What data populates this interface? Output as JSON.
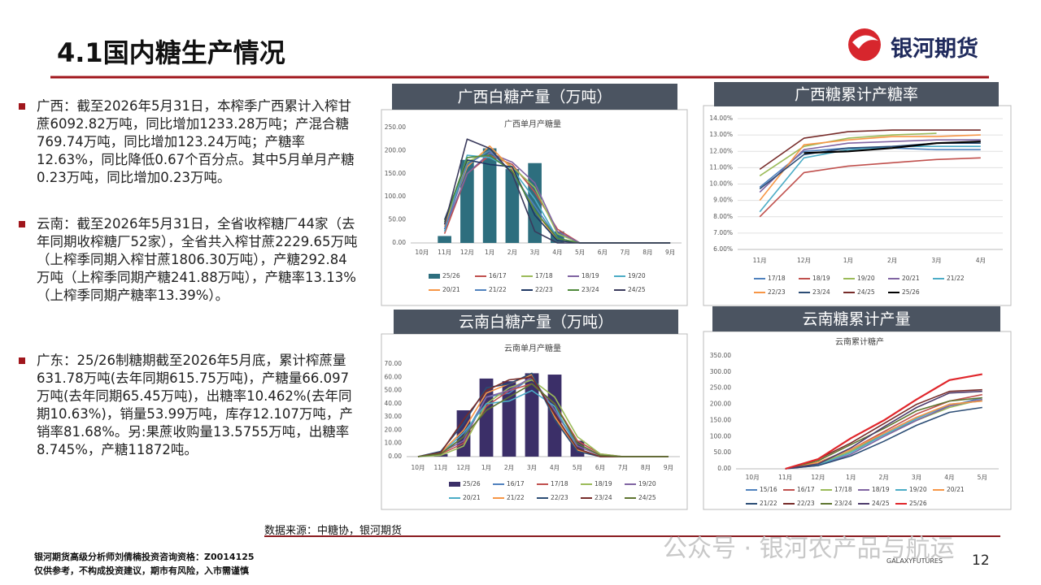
{
  "header": {
    "title": "4.1国内糖生产情况",
    "logo": "银河期货"
  },
  "bullets": [
    "广西：截至2026年5月31日，本榨季广西累计入榨甘蔗6092.82万吨，同比增加1233.28万吨；产混合糖769.74万吨，同比增加123.24万吨；产糖率12.63%，同比降低0.67个百分点。其中5月单月产糖0.23万吨，同比增加0.23万吨。",
    "云南：截至2026年5月31日，全省收榨糖厂44家（去年同期收榨糖厂52家），全省共入榨甘蔗2229.65万吨（上榨季同期入榨甘蔗1806.30万吨），产糖292.84万吨（上榨季同期产糖241.88万吨），产糖率13.13%（上榨季同期产糖率13.39%）。",
    "广东：25/26制糖期截至2026年5月底，累计榨蔗量631.78万吨(去年同期615.75万吨)，产糖量66.097万吨(去年同期65.45万吨)，出糖率10.462%(去年同期10.63%)，销量53.99万吨，库存12.107万吨，产销率81.68%。另:果蔗收购量13.5755万吨，出糖率8.745%，产糖11872吨。"
  ],
  "source": "数据来源：中糖协，银河期货",
  "footer": {
    "line1": "银河期货高级分析师刘倩楠投资咨询资格：Z0014125",
    "line2": "仅供参考，不构成投资建议，期市有风险，入市需谨慎",
    "watermark": "公众号 · 银河农产品与航运",
    "brand": "GALAXYFUTURES",
    "page": "12"
  },
  "chart_data": [
    {
      "type": "combo",
      "title": "广西白糖产量（万吨）",
      "subtitle": "广西单月产糖量",
      "grid": false,
      "categories": [
        "10月",
        "11月",
        "12月",
        "1月",
        "2月",
        "3月",
        "4月",
        "5月",
        "6月",
        "7月",
        "8月",
        "9月"
      ],
      "ylim": [
        0,
        250
      ],
      "yticks": [
        {
          "value": 0,
          "label": "0.00"
        },
        {
          "value": 50,
          "label": "50.00"
        },
        {
          "value": 100,
          "label": "100.00"
        },
        {
          "value": 150,
          "label": "150.00"
        },
        {
          "value": 200,
          "label": "200.00"
        },
        {
          "value": 250,
          "label": "250.00"
        }
      ],
      "series": [
        {
          "name": "25/26",
          "type": "bar",
          "color": "#2d6e7e",
          "values": [
            null,
            15,
            180,
            205,
            160,
            173,
            25,
            0.23,
            null,
            null,
            null,
            null
          ]
        },
        {
          "name": "16/17",
          "type": "line",
          "color": "#c0504d",
          "values": [
            null,
            20,
            150,
            190,
            170,
            110,
            30,
            0,
            0,
            0,
            0,
            0
          ]
        },
        {
          "name": "17/18",
          "type": "line",
          "color": "#9bbb59",
          "values": [
            null,
            40,
            175,
            200,
            165,
            120,
            20,
            0,
            0,
            0,
            0,
            0
          ]
        },
        {
          "name": "18/19",
          "type": "line",
          "color": "#8064a2",
          "values": [
            null,
            30,
            150,
            195,
            175,
            130,
            25,
            0,
            0,
            0,
            0,
            0
          ]
        },
        {
          "name": "19/20",
          "type": "line",
          "color": "#4bacc6",
          "values": [
            null,
            25,
            190,
            185,
            160,
            95,
            10,
            0,
            0,
            0,
            0,
            0
          ]
        },
        {
          "name": "20/21",
          "type": "line",
          "color": "#f79646",
          "values": [
            null,
            35,
            165,
            210,
            160,
            70,
            5,
            0,
            0,
            0,
            0,
            0
          ]
        },
        {
          "name": "21/22",
          "type": "line",
          "color": "#4f81bd",
          "values": [
            null,
            30,
            170,
            200,
            150,
            80,
            10,
            0,
            0,
            0,
            0,
            0
          ]
        },
        {
          "name": "22/23",
          "type": "line",
          "color": "#1f3864",
          "values": [
            null,
            50,
            180,
            170,
            165,
            60,
            5,
            0,
            0,
            0,
            0,
            0
          ]
        },
        {
          "name": "23/24",
          "type": "line",
          "color": "#4f8a3c",
          "values": [
            null,
            45,
            185,
            190,
            155,
            70,
            10,
            0,
            0,
            0,
            0,
            0
          ]
        },
        {
          "name": "24/25",
          "type": "line",
          "color": "#3a3a5c",
          "values": [
            null,
            40,
            225,
            205,
            150,
            25,
            0,
            0,
            0,
            0,
            0,
            0
          ]
        }
      ]
    },
    {
      "type": "line",
      "title": "广西糖累计产糖率",
      "grid": true,
      "categories": [
        "11月",
        "12月",
        "1月",
        "2月",
        "3月",
        "4月"
      ],
      "ylim": [
        6,
        14
      ],
      "yticks": [
        {
          "value": 6,
          "label": "6.00%"
        },
        {
          "value": 7,
          "label": "7.00%"
        },
        {
          "value": 8,
          "label": "8.00%"
        },
        {
          "value": 9,
          "label": "9.00%"
        },
        {
          "value": 10,
          "label": "10.00%"
        },
        {
          "value": 11,
          "label": "11.00%"
        },
        {
          "value": 12,
          "label": "12.00%"
        },
        {
          "value": 13,
          "label": "13.00%"
        },
        {
          "value": 14,
          "label": "14.00%"
        }
      ],
      "series": [
        {
          "name": "17/18",
          "type": "line",
          "color": "#4f81bd",
          "values": [
            9.8,
            12.0,
            12.2,
            12.2,
            12.1,
            12.1
          ]
        },
        {
          "name": "18/19",
          "type": "line",
          "color": "#c0504d",
          "values": [
            8.0,
            10.7,
            11.1,
            11.3,
            11.5,
            11.6
          ]
        },
        {
          "name": "19/20",
          "type": "line",
          "color": "#9bbb59",
          "values": [
            10.5,
            12.3,
            12.8,
            13.0,
            13.1,
            null
          ]
        },
        {
          "name": "20/21",
          "type": "line",
          "color": "#8064a2",
          "values": [
            9.5,
            12.1,
            12.5,
            12.6,
            12.7,
            12.7
          ]
        },
        {
          "name": "21/22",
          "type": "line",
          "color": "#4bacc6",
          "values": [
            8.3,
            11.6,
            12.1,
            12.3,
            12.3,
            12.3
          ]
        },
        {
          "name": "22/23",
          "type": "line",
          "color": "#f79646",
          "values": [
            9.0,
            12.4,
            12.7,
            12.9,
            12.9,
            13.0
          ]
        },
        {
          "name": "23/24",
          "type": "line",
          "color": "#2c4d75",
          "values": [
            9.7,
            11.8,
            12.2,
            12.3,
            12.5,
            12.5
          ]
        },
        {
          "name": "24/25",
          "type": "line",
          "color": "#772c2a",
          "values": [
            10.9,
            12.8,
            13.2,
            13.3,
            13.3,
            13.3
          ]
        },
        {
          "name": "25/26",
          "type": "line",
          "color": "#000000",
          "values": [
            null,
            11.9,
            12.0,
            12.2,
            12.5,
            12.6
          ]
        }
      ]
    },
    {
      "type": "combo",
      "title": "云南白糖产量（万吨）",
      "subtitle": "云南单月产糖量",
      "grid": false,
      "categories": [
        "10月",
        "11月",
        "12月",
        "1月",
        "2月",
        "3月",
        "4月",
        "5月",
        "6月",
        "7月",
        "8月",
        "9月"
      ],
      "ylim": [
        0,
        70
      ],
      "yticks": [
        {
          "value": 0,
          "label": "0.00"
        },
        {
          "value": 10,
          "label": "10.00"
        },
        {
          "value": 20,
          "label": "20.00"
        },
        {
          "value": 30,
          "label": "30.00"
        },
        {
          "value": 40,
          "label": "40.00"
        },
        {
          "value": 50,
          "label": "50.00"
        },
        {
          "value": 60,
          "label": "60.00"
        },
        {
          "value": 70,
          "label": "70.00"
        }
      ],
      "series": [
        {
          "name": "25/26",
          "type": "bar",
          "color": "#3b2f68",
          "values": [
            null,
            2,
            35,
            59,
            57,
            63,
            62,
            12,
            null,
            null,
            null,
            null
          ]
        },
        {
          "name": "16/17",
          "type": "line",
          "color": "#4f81bd",
          "values": [
            0,
            2,
            15,
            45,
            48,
            60,
            35,
            10,
            1,
            0,
            0,
            0
          ]
        },
        {
          "name": "17/18",
          "type": "line",
          "color": "#c0504d",
          "values": [
            0,
            2,
            10,
            38,
            50,
            55,
            40,
            12,
            2,
            0,
            0,
            0
          ]
        },
        {
          "name": "18/19",
          "type": "line",
          "color": "#9bbb59",
          "values": [
            0,
            1,
            8,
            40,
            52,
            58,
            45,
            15,
            2,
            0,
            0,
            0
          ]
        },
        {
          "name": "19/20",
          "type": "line",
          "color": "#8064a2",
          "values": [
            0,
            3,
            12,
            45,
            50,
            60,
            35,
            8,
            1,
            0,
            0,
            0
          ]
        },
        {
          "name": "20/21",
          "type": "line",
          "color": "#4bacc6",
          "values": [
            0,
            2,
            18,
            40,
            42,
            50,
            38,
            6,
            0,
            0,
            0,
            0
          ]
        },
        {
          "name": "21/22",
          "type": "line",
          "color": "#f79646",
          "values": [
            0,
            3,
            20,
            48,
            55,
            62,
            30,
            5,
            0,
            0,
            0,
            0
          ]
        },
        {
          "name": "22/23",
          "type": "line",
          "color": "#2c4d75",
          "values": [
            0,
            4,
            25,
            52,
            55,
            63,
            28,
            4,
            0,
            0,
            0,
            0
          ]
        },
        {
          "name": "23/24",
          "type": "line",
          "color": "#772c2a",
          "values": [
            0,
            3,
            28,
            50,
            58,
            60,
            32,
            6,
            0,
            0,
            0,
            0
          ]
        },
        {
          "name": "24/25",
          "type": "line",
          "color": "#5f7530",
          "values": [
            0,
            2,
            15,
            35,
            45,
            55,
            40,
            10,
            1,
            0,
            0,
            0
          ]
        }
      ]
    },
    {
      "type": "line",
      "title": "云南糖累计产量",
      "subtitle": "云南累计糖产",
      "grid": false,
      "categories": [
        "10月",
        "11月",
        "12月",
        "1月",
        "2月",
        "3月",
        "4月",
        "5月"
      ],
      "ylim": [
        0,
        350
      ],
      "yticks": [
        {
          "value": 0,
          "label": "0.00"
        },
        {
          "value": 50,
          "label": "50.00"
        },
        {
          "value": 100,
          "label": "100.00"
        },
        {
          "value": 150,
          "label": "150.00"
        },
        {
          "value": 200,
          "label": "200.00"
        },
        {
          "value": 250,
          "label": "250.00"
        },
        {
          "value": 300,
          "label": "300.00"
        },
        {
          "value": 350,
          "label": "350.00"
        }
      ],
      "series": [
        {
          "name": "15/16",
          "type": "line",
          "color": "#4f81bd",
          "values": [
            null,
            0,
            15,
            55,
            110,
            160,
            195,
            220
          ]
        },
        {
          "name": "16/17",
          "type": "line",
          "color": "#c0504d",
          "values": [
            null,
            0,
            20,
            60,
            115,
            170,
            210,
            230
          ]
        },
        {
          "name": "17/18",
          "type": "line",
          "color": "#9bbb59",
          "values": [
            null,
            0,
            15,
            55,
            105,
            150,
            190,
            215
          ]
        },
        {
          "name": "18/19",
          "type": "line",
          "color": "#8064a2",
          "values": [
            null,
            0,
            10,
            45,
            100,
            150,
            195,
            215
          ]
        },
        {
          "name": "19/20",
          "type": "line",
          "color": "#4bacc6",
          "values": [
            null,
            0,
            12,
            50,
            105,
            155,
            200,
            210
          ]
        },
        {
          "name": "20/21",
          "type": "line",
          "color": "#f79646",
          "values": [
            null,
            0,
            20,
            60,
            110,
            160,
            200,
            210
          ]
        },
        {
          "name": "21/22",
          "type": "line",
          "color": "#2c4d75",
          "values": [
            null,
            0,
            10,
            40,
            85,
            135,
            175,
            190
          ]
        },
        {
          "name": "22/23",
          "type": "line",
          "color": "#772c2a",
          "values": [
            null,
            0,
            30,
            80,
            140,
            200,
            240,
            245
          ]
        },
        {
          "name": "23/24",
          "type": "line",
          "color": "#5f7530",
          "values": [
            null,
            0,
            25,
            75,
            125,
            180,
            210,
            220
          ]
        },
        {
          "name": "24/25",
          "type": "line",
          "color": "#4d3b6b",
          "values": [
            null,
            0,
            15,
            65,
            130,
            190,
            235,
            240
          ]
        },
        {
          "name": "25/26",
          "type": "line",
          "color": "#e0262b",
          "values": [
            null,
            0,
            30,
            95,
            150,
            215,
            275,
            293
          ]
        }
      ]
    }
  ]
}
